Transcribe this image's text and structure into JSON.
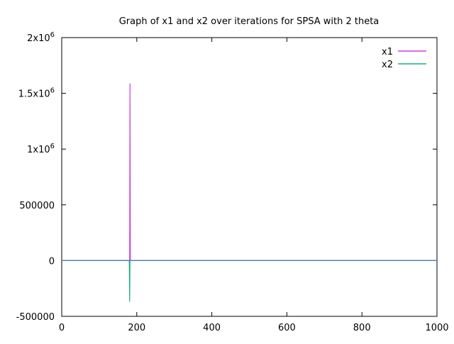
{
  "chart_data": {
    "type": "line",
    "title": "Graph of x1 and x2 over iterations for SPSA with 2 theta",
    "xlabel": "",
    "ylabel": "",
    "xlim": [
      0,
      1000
    ],
    "ylim": [
      -500000,
      2000000
    ],
    "x_ticks": [
      0,
      200,
      400,
      600,
      800,
      1000
    ],
    "x_tick_labels": [
      "0",
      "200",
      "400",
      "600",
      "800",
      "1000"
    ],
    "y_ticks": [
      -500000,
      0,
      500000,
      1000000,
      1500000,
      2000000
    ],
    "y_tick_labels": [
      {
        "base": "-500000",
        "exp": ""
      },
      {
        "base": "0",
        "exp": ""
      },
      {
        "base": "500000",
        "exp": ""
      },
      {
        "base": "1x10",
        "exp": "6"
      },
      {
        "base": "1.5x10",
        "exp": "6"
      },
      {
        "base": "2x10",
        "exp": "6"
      }
    ],
    "grid": false,
    "legend_position": "top-right",
    "series": [
      {
        "name": "x1",
        "color": "#cc44dd",
        "points": [
          [
            0,
            0
          ],
          [
            181,
            0
          ],
          [
            182,
            1590000
          ],
          [
            183,
            0
          ],
          [
            1000,
            0
          ]
        ]
      },
      {
        "name": "x2",
        "color": "#22aa88",
        "points": [
          [
            0,
            0
          ],
          [
            180,
            0
          ],
          [
            181,
            -370000
          ],
          [
            182,
            0
          ],
          [
            1000,
            0
          ]
        ]
      }
    ],
    "zero_line_color": "#5577aa"
  }
}
